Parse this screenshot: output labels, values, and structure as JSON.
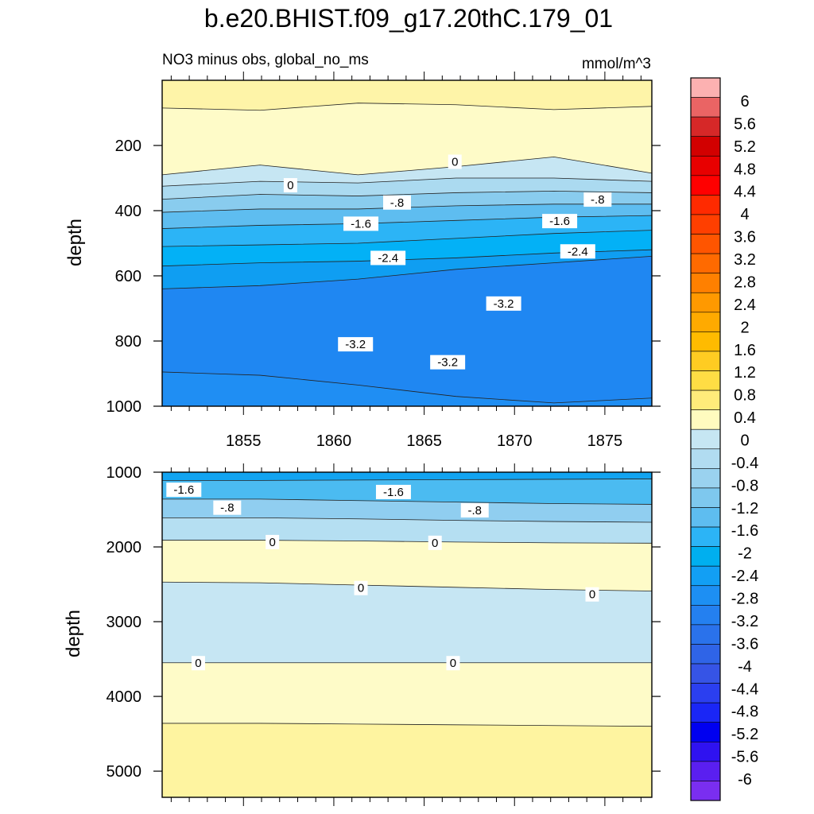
{
  "chart_data": {
    "type": "contour",
    "title": "b.e20.BHIST.f09_g17.20thC.179_01",
    "variable_label": "NO3 minus obs, global_no_ms",
    "units_label": "mmol/m^3",
    "time_axis": {
      "range": [
        1850.5,
        1877.6
      ],
      "ticks": [
        1855,
        1860,
        1865,
        1870,
        1875
      ],
      "tick_labels": [
        "1855",
        "1860",
        "1865",
        "1870",
        "1875"
      ]
    },
    "panels": [
      {
        "name": "upper",
        "ylabel": "depth",
        "depth_range": [
          0,
          1000
        ],
        "yticks": [
          200,
          400,
          600,
          800,
          1000
        ],
        "ytick_labels": [
          "200",
          "400",
          "600",
          "800",
          "1000"
        ],
        "bands": [
          {
            "color": "#fef4a8",
            "top": [
              0,
              0,
              0,
              0,
              0,
              0
            ],
            "bottom": [
              85,
              92,
              70,
              75,
              90,
              80
            ]
          },
          {
            "color": "#fefbc8",
            "top": [
              85,
              92,
              70,
              75,
              90,
              80
            ],
            "bottom": [
              290,
              260,
              290,
              265,
              235,
              285
            ]
          },
          {
            "color": "#c6e6f3",
            "top": [
              290,
              260,
              290,
              265,
              235,
              285
            ],
            "bottom": [
              325,
              310,
              315,
              300,
              300,
              310
            ]
          },
          {
            "color": "#abdaf0",
            "top": [
              325,
              310,
              315,
              300,
              300,
              310
            ],
            "bottom": [
              365,
              350,
              355,
              345,
              340,
              345
            ]
          },
          {
            "color": "#89ccee",
            "top": [
              365,
              350,
              355,
              345,
              340,
              345
            ],
            "bottom": [
              405,
              395,
              395,
              385,
              380,
              380
            ]
          },
          {
            "color": "#5ebdf0",
            "top": [
              405,
              395,
              395,
              385,
              380,
              380
            ],
            "bottom": [
              455,
              445,
              440,
              430,
              420,
              415
            ]
          },
          {
            "color": "#2cb4f6",
            "top": [
              455,
              445,
              440,
              430,
              420,
              415
            ],
            "bottom": [
              510,
              505,
              500,
              485,
              470,
              460
            ]
          },
          {
            "color": "#03b1f6",
            "top": [
              510,
              505,
              500,
              485,
              470,
              460
            ],
            "bottom": [
              570,
              560,
              555,
              545,
              530,
              520
            ]
          },
          {
            "color": "#0f9ef2",
            "top": [
              570,
              560,
              555,
              545,
              530,
              520
            ],
            "bottom": [
              640,
              630,
              610,
              580,
              560,
              540
            ]
          },
          {
            "color": "#1f87f2",
            "top": [
              640,
              630,
              610,
              580,
              560,
              540
            ],
            "bottom": [
              895,
              905,
              935,
              970,
              990,
              975
            ]
          },
          {
            "color": "#1f8ef3",
            "top": [
              895,
              905,
              935,
              970,
              990,
              975
            ],
            "bottom": [
              1000,
              1000,
              1000,
              1000,
              1000,
              1000
            ]
          }
        ],
        "contour_labels": [
          "0",
          "0",
          "-.8",
          "-.8",
          "-1.6",
          "-1.6",
          "-2.4",
          "-2.4",
          "-3.2",
          "-3.2",
          "-3.2"
        ],
        "label_points": [
          {
            "t": 1866.7,
            "d": 250
          },
          {
            "t": 1857.6,
            "d": 322
          },
          {
            "t": 1863.5,
            "d": 375
          },
          {
            "t": 1874.6,
            "d": 366
          },
          {
            "t": 1861.5,
            "d": 440
          },
          {
            "t": 1872.5,
            "d": 432
          },
          {
            "t": 1863.0,
            "d": 545
          },
          {
            "t": 1873.5,
            "d": 525
          },
          {
            "t": 1869.4,
            "d": 685
          },
          {
            "t": 1861.2,
            "d": 810
          },
          {
            "t": 1866.3,
            "d": 865
          }
        ]
      },
      {
        "name": "lower",
        "ylabel": "depth",
        "depth_range": [
          1000,
          5350
        ],
        "yticks": [
          1000,
          2000,
          3000,
          4000,
          5000
        ],
        "ytick_labels": [
          "1000",
          "2000",
          "3000",
          "4000",
          "5000"
        ],
        "bands": [
          {
            "color": "#12a4f1",
            "top": [
              1000,
              1000,
              1000,
              1000,
              1000,
              1000
            ],
            "bottom": [
              1110,
              1110,
              1105,
              1100,
              1095,
              1090
            ]
          },
          {
            "color": "#4bbbf1",
            "top": [
              1110,
              1110,
              1105,
              1100,
              1095,
              1090
            ],
            "bottom": [
              1360,
              1360,
              1380,
              1400,
              1420,
              1430
            ]
          },
          {
            "color": "#90cef0",
            "top": [
              1360,
              1360,
              1380,
              1400,
              1420,
              1430
            ],
            "bottom": [
              1610,
              1610,
              1625,
              1645,
              1660,
              1670
            ]
          },
          {
            "color": "#b5dff2",
            "top": [
              1610,
              1610,
              1625,
              1645,
              1660,
              1670
            ],
            "bottom": [
              1910,
              1910,
              1920,
              1935,
              1945,
              1950
            ]
          },
          {
            "color": "#fefbc8",
            "top": [
              1910,
              1910,
              1920,
              1935,
              1945,
              1950
            ],
            "bottom": [
              2470,
              2480,
              2510,
              2540,
              2570,
              2590
            ]
          },
          {
            "color": "#c6e6f3",
            "top": [
              2470,
              2480,
              2510,
              2540,
              2570,
              2590
            ],
            "bottom": [
              3550,
              3550,
              3550,
              3550,
              3550,
              3550
            ]
          },
          {
            "color": "#fefbc8",
            "top": [
              3550,
              3550,
              3550,
              3550,
              3550,
              3550
            ],
            "bottom": [
              4360,
              4360,
              4370,
              4380,
              4390,
              4400
            ]
          },
          {
            "color": "#fef4a0",
            "top": [
              4360,
              4360,
              4370,
              4380,
              4390,
              4400
            ],
            "bottom": [
              5350,
              5350,
              5350,
              5350,
              5350,
              5350
            ]
          }
        ],
        "contour_labels": [
          "-1.6",
          "-1.6",
          "-.8",
          "-.8",
          "0",
          "0",
          "0",
          "0",
          "0",
          "0"
        ],
        "label_points": [
          {
            "t": 1851.7,
            "d": 1235
          },
          {
            "t": 1863.3,
            "d": 1265
          },
          {
            "t": 1854.1,
            "d": 1475
          },
          {
            "t": 1867.8,
            "d": 1510
          },
          {
            "t": 1856.6,
            "d": 1935
          },
          {
            "t": 1865.6,
            "d": 1945
          },
          {
            "t": 1861.5,
            "d": 2550
          },
          {
            "t": 1874.3,
            "d": 2635
          },
          {
            "t": 1852.5,
            "d": 3555
          },
          {
            "t": 1866.6,
            "d": 3555
          }
        ]
      }
    ],
    "colorbar": {
      "colors": [
        "#fcb1b1",
        "#ea6464",
        "#d62828",
        "#d20000",
        "#e80000",
        "#ff0000",
        "#ff2a00",
        "#ff3f00",
        "#ff5500",
        "#ff6a00",
        "#ff8000",
        "#ff9900",
        "#ffaa00",
        "#ffbb00",
        "#ffcc22",
        "#ffdd44",
        "#ffeb7a",
        "#fffbbf",
        "#c6e6f3",
        "#b1dcf1",
        "#9ad2ef",
        "#7ec8ee",
        "#5ebdf0",
        "#2cb4f6",
        "#00afef",
        "#129ff4",
        "#1d8ff3",
        "#2480f0",
        "#2a72eb",
        "#2f64e7",
        "#3654e6",
        "#2b3ff0",
        "#1a26f6",
        "#0000f0",
        "#2f12f0",
        "#5a1ff0",
        "#7a2ef0"
      ],
      "labels": [
        "6",
        "5.6",
        "5.2",
        "4.8",
        "4.4",
        "4",
        "3.6",
        "3.2",
        "2.8",
        "2.4",
        "2",
        "1.6",
        "1.2",
        "0.8",
        "0.4",
        "0",
        "-0.4",
        "-0.8",
        "-1.2",
        "-1.6",
        "-2",
        "-2.4",
        "-2.8",
        "-3.2",
        "-3.6",
        "-4",
        "-4.4",
        "-4.8",
        "-5.2",
        "-5.6",
        "-6"
      ]
    }
  }
}
